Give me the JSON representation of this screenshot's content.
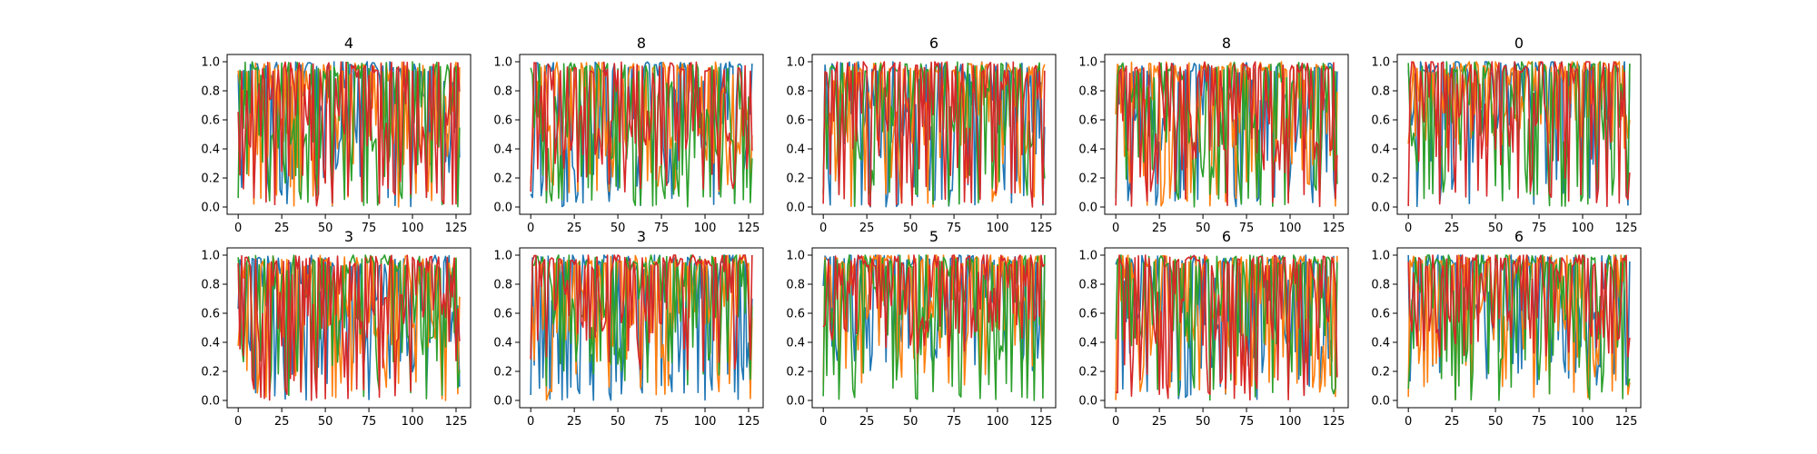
{
  "chart_data": {
    "type": "line",
    "layout": "2x5 grid of small-multiple line plots",
    "series_colors": [
      "#1f77b4",
      "#ff7f0e",
      "#2ca02c",
      "#d62728"
    ],
    "x_length": 128,
    "xlim": [
      0,
      127
    ],
    "ylim": [
      0.0,
      1.0
    ],
    "xticks": [
      0,
      25,
      50,
      75,
      100,
      125
    ],
    "yticks": [
      0.0,
      0.2,
      0.4,
      0.6,
      0.8,
      1.0
    ],
    "grid": false,
    "legend": "none",
    "panels": [
      {
        "title": "4",
        "series_stats": [
          {
            "mean": 0.72,
            "min": 0.0,
            "max": 1.0
          },
          {
            "mean": 0.7,
            "min": 0.0,
            "max": 1.0
          },
          {
            "mean": 0.74,
            "min": 0.0,
            "max": 1.0
          },
          {
            "mean": 0.7,
            "min": 0.0,
            "max": 1.0
          }
        ]
      },
      {
        "title": "8",
        "series_stats": [
          {
            "mean": 0.7,
            "min": 0.0,
            "max": 1.0
          },
          {
            "mean": 0.7,
            "min": 0.1,
            "max": 1.0
          },
          {
            "mean": 0.62,
            "min": 0.0,
            "max": 1.0
          },
          {
            "mean": 0.7,
            "min": 0.1,
            "max": 1.0
          }
        ]
      },
      {
        "title": "6",
        "series_stats": [
          {
            "mean": 0.72,
            "min": 0.0,
            "max": 1.0
          },
          {
            "mean": 0.7,
            "min": 0.0,
            "max": 1.0
          },
          {
            "mean": 0.68,
            "min": 0.0,
            "max": 1.0
          },
          {
            "mean": 0.72,
            "min": 0.0,
            "max": 1.0
          }
        ]
      },
      {
        "title": "8",
        "series_stats": [
          {
            "mean": 0.7,
            "min": 0.0,
            "max": 1.0
          },
          {
            "mean": 0.7,
            "min": 0.0,
            "max": 1.0
          },
          {
            "mean": 0.7,
            "min": 0.0,
            "max": 1.0
          },
          {
            "mean": 0.66,
            "min": 0.0,
            "max": 1.0
          }
        ]
      },
      {
        "title": "0",
        "series_stats": [
          {
            "mean": 0.8,
            "min": 0.0,
            "max": 1.0
          },
          {
            "mean": 0.8,
            "min": 0.4,
            "max": 1.0
          },
          {
            "mean": 0.76,
            "min": 0.0,
            "max": 1.0
          },
          {
            "mean": 0.78,
            "min": 0.0,
            "max": 1.0
          }
        ]
      },
      {
        "title": "3",
        "series_stats": [
          {
            "mean": 0.68,
            "min": 0.0,
            "max": 1.0
          },
          {
            "mean": 0.66,
            "min": 0.0,
            "max": 1.0
          },
          {
            "mean": 0.72,
            "min": 0.0,
            "max": 1.0
          },
          {
            "mean": 0.7,
            "min": 0.0,
            "max": 1.0
          }
        ]
      },
      {
        "title": "3",
        "series_stats": [
          {
            "mean": 0.76,
            "min": 0.0,
            "max": 1.0
          },
          {
            "mean": 0.72,
            "min": 0.0,
            "max": 1.0
          },
          {
            "mean": 0.8,
            "min": 0.1,
            "max": 1.0
          },
          {
            "mean": 0.8,
            "min": 0.2,
            "max": 1.0
          }
        ]
      },
      {
        "title": "5",
        "series_stats": [
          {
            "mean": 0.76,
            "min": 0.2,
            "max": 1.0
          },
          {
            "mean": 0.8,
            "min": 0.1,
            "max": 1.0
          },
          {
            "mean": 0.74,
            "min": 0.0,
            "max": 1.0
          },
          {
            "mean": 0.76,
            "min": 0.3,
            "max": 1.0
          }
        ]
      },
      {
        "title": "6",
        "series_stats": [
          {
            "mean": 0.72,
            "min": 0.0,
            "max": 1.0
          },
          {
            "mean": 0.7,
            "min": 0.0,
            "max": 1.0
          },
          {
            "mean": 0.72,
            "min": 0.0,
            "max": 1.0
          },
          {
            "mean": 0.72,
            "min": 0.0,
            "max": 1.0
          }
        ]
      },
      {
        "title": "6",
        "series_stats": [
          {
            "mean": 0.78,
            "min": 0.1,
            "max": 1.0
          },
          {
            "mean": 0.74,
            "min": 0.0,
            "max": 1.0
          },
          {
            "mean": 0.8,
            "min": 0.0,
            "max": 1.0
          },
          {
            "mean": 0.8,
            "min": 0.3,
            "max": 1.0
          }
        ]
      }
    ]
  }
}
